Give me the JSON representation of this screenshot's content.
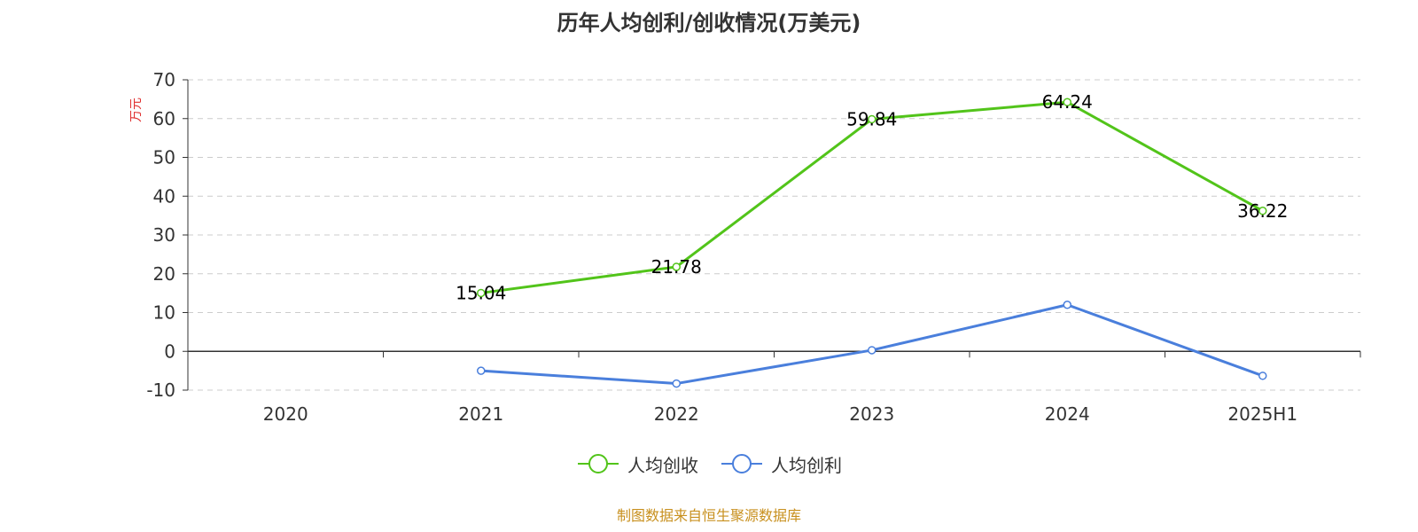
{
  "chart_data": {
    "type": "line",
    "title": "历年人均创利/创收情况(万美元)",
    "ylabel": "万元",
    "categories": [
      "2020",
      "2021",
      "2022",
      "2023",
      "2024",
      "2025H1"
    ],
    "yticks": [
      70,
      60,
      50,
      40,
      30,
      20,
      10,
      0,
      -10
    ],
    "ylim": [
      -10,
      70
    ],
    "grid": true,
    "legend_position": "bottom",
    "series": [
      {
        "name": "人均创收",
        "color": "#52c41a",
        "values": [
          null,
          15.04,
          21.78,
          59.84,
          64.24,
          36.22
        ],
        "show_labels": true
      },
      {
        "name": "人均创利",
        "color": "#4a7fdc",
        "values": [
          null,
          -5.0,
          -8.3,
          0.3,
          12.0,
          -6.3
        ],
        "show_labels": false
      }
    ]
  },
  "ylabel_color": "#e03030",
  "source_text": "制图数据来自恒生聚源数据库",
  "source_color": "#c8901e"
}
